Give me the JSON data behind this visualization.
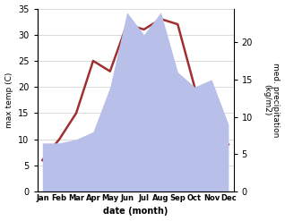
{
  "months": [
    "Jan",
    "Feb",
    "Mar",
    "Apr",
    "May",
    "Jun",
    "Jul",
    "Aug",
    "Sep",
    "Oct",
    "Nov",
    "Dec"
  ],
  "temp": [
    6,
    10,
    15,
    25,
    23,
    32,
    31,
    33,
    32,
    20,
    13,
    9
  ],
  "precip": [
    6.5,
    6.5,
    7,
    8,
    14,
    24,
    21,
    24,
    16,
    14,
    15,
    9
  ],
  "temp_color": "#a03030",
  "precip_color_fill": "#b8bfe8",
  "temp_ylim": [
    0,
    35
  ],
  "precip_ylim": [
    0,
    24.5
  ],
  "temp_yticks": [
    0,
    5,
    10,
    15,
    20,
    25,
    30,
    35
  ],
  "precip_yticks": [
    0,
    5,
    10,
    15,
    20
  ],
  "ylabel_left": "max temp (C)",
  "ylabel_right": "med. precipitation\n(kg/m2)",
  "xlabel": "date (month)",
  "background_color": "#ffffff"
}
